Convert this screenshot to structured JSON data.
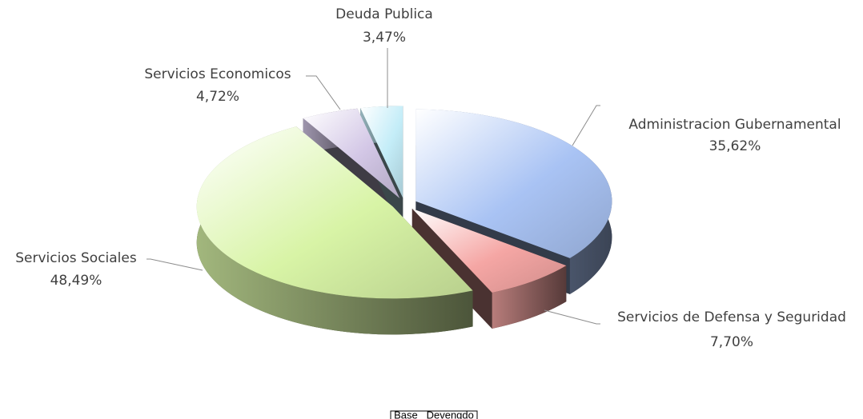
{
  "chart_data": {
    "type": "pie",
    "categories": [
      "Administracion Gubernamental",
      "Servicios de Defensa y Seguridad",
      "Servicios Sociales",
      "Servicios Economicos",
      "Deuda Publica"
    ],
    "values": [
      35.62,
      7.7,
      48.49,
      4.72,
      3.47
    ],
    "value_labels": [
      "35,62%",
      "7,70%",
      "48,49%",
      "4,72%",
      "3,47%"
    ],
    "colors": [
      "#a9c3f4",
      "#f5a6a4",
      "#d8f4a6",
      "#d3c7e6",
      "#c4edf8"
    ],
    "annotation": "Base   Devengdo"
  }
}
